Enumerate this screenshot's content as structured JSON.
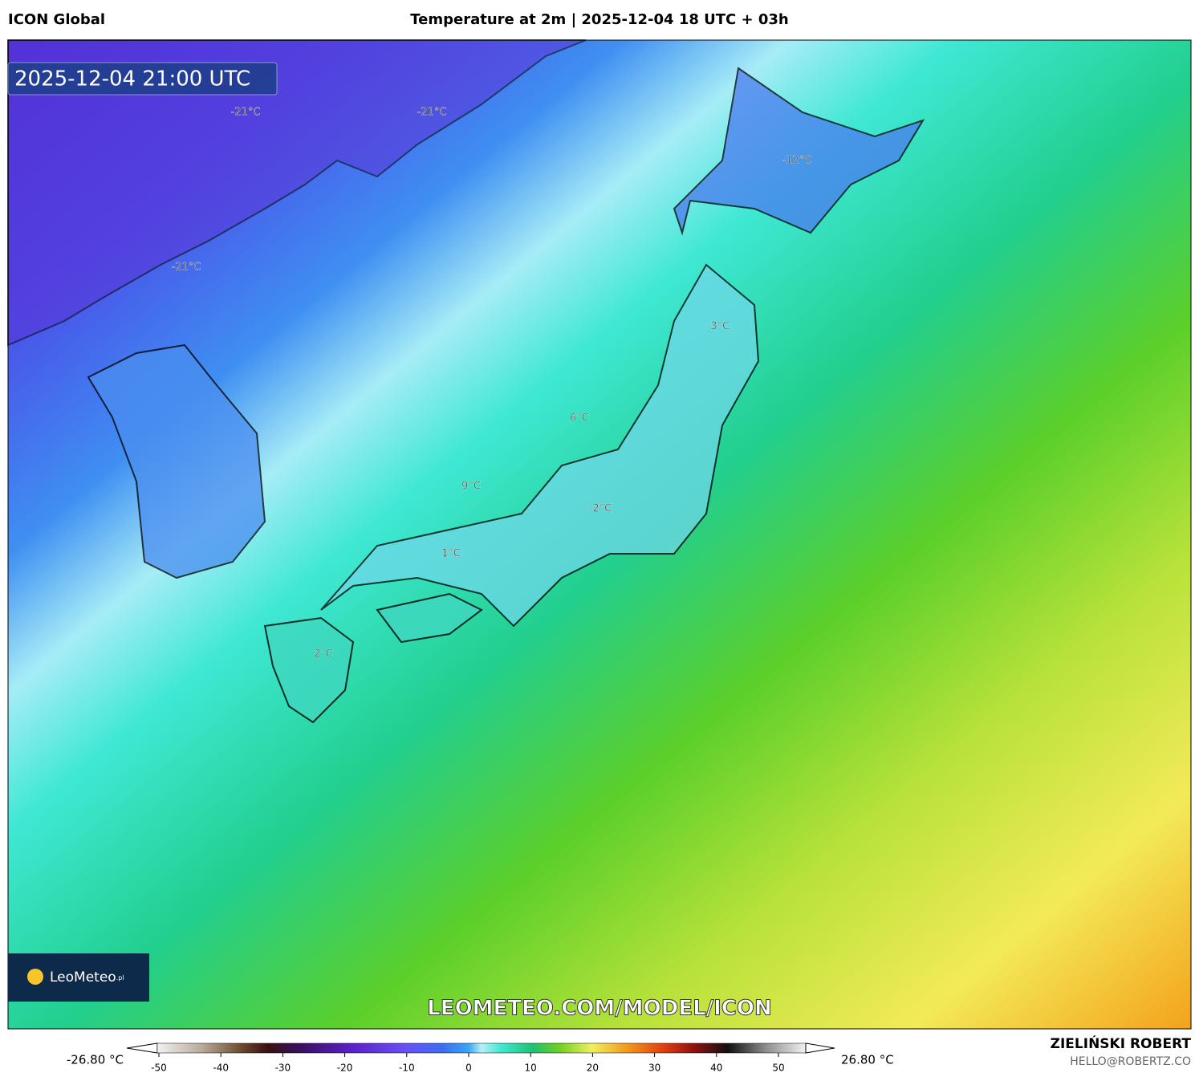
{
  "header": {
    "model": "ICON Global",
    "title": "Temperature at 2m | 2025-12-04 18 UTC + 03h"
  },
  "map": {
    "timestamp": "2025-12-04 21:00 UTC",
    "labels": [
      "-21°C",
      "-21°C",
      "-12°C",
      "-21°C",
      "-3°C",
      "6°C",
      "9°C",
      "-2°C",
      "1°C",
      "2°C"
    ],
    "logo": "LeoMeteo",
    "logo_suffix": ".pl",
    "watermark": "LEOMETEO.COM/MODEL/ICON"
  },
  "legend": {
    "min_label": "-26.80 °C",
    "max_label": "26.80 °C",
    "ticks": [
      -50,
      -40,
      -30,
      -20,
      -10,
      0,
      10,
      20,
      30,
      40,
      50
    ]
  },
  "footer": {
    "author": "ZIELIŃSKI ROBERT",
    "contact": "HELLO@ROBERTZ.CO"
  }
}
